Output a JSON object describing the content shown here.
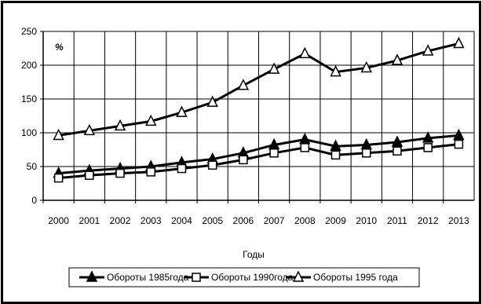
{
  "chart_data": {
    "type": "line",
    "title": "",
    "xlabel": "Годы",
    "ylabel": "%",
    "x": [
      "2000",
      "2001",
      "2002",
      "2003",
      "2004",
      "2005",
      "2006",
      "2007",
      "2008",
      "2009",
      "2010",
      "2011",
      "2012",
      "2013"
    ],
    "yticks": [
      "0",
      "50",
      "100",
      "150",
      "200",
      "250"
    ],
    "ylim": [
      0,
      250
    ],
    "grid": true,
    "legend_position": "bottom",
    "series": [
      {
        "name": "Обороты 1985года",
        "marker": "filled-triangle",
        "color": "#000000",
        "values": [
          40,
          44,
          47,
          50,
          56,
          61,
          70,
          82,
          90,
          80,
          82,
          86,
          92,
          96
        ]
      },
      {
        "name": "Обороты 1990года",
        "marker": "square",
        "color": "#000000",
        "values": [
          33,
          37,
          40,
          42,
          47,
          52,
          60,
          70,
          78,
          67,
          70,
          73,
          78,
          83
        ]
      },
      {
        "name": "Обороты 1995 года",
        "marker": "open-triangle",
        "color": "#000000",
        "values": [
          96,
          103,
          110,
          117,
          130,
          145,
          170,
          194,
          217,
          190,
          196,
          207,
          221,
          232
        ]
      }
    ]
  }
}
